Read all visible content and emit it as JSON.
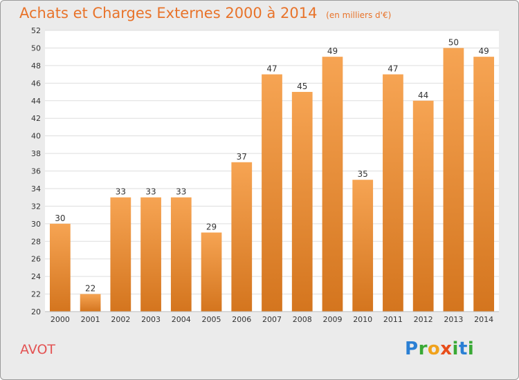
{
  "header": {
    "title": "Achats et Charges Externes 2000 à 2014",
    "subtitle": "(en milliers d'€)"
  },
  "location": {
    "name": "AVOT"
  },
  "logo": {
    "letters": [
      "P",
      "r",
      "o",
      "x",
      "i",
      "t",
      "i"
    ],
    "colors": [
      "#2a7fd4",
      "#39a935",
      "#f0a21c",
      "#e84e1b",
      "#39a935",
      "#2a7fd4",
      "#39a935"
    ]
  },
  "colors": {
    "bar_light": "#f6a453",
    "bar_dark": "#d4751e",
    "title": "#e8732a",
    "plot_bg": "#ffffff",
    "grid": "#dddddd",
    "axis_text": "#333333"
  },
  "chart_data": {
    "type": "bar",
    "title": "Achats et Charges Externes 2000 à 2014",
    "subtitle": "(en milliers d'€)",
    "xlabel": "",
    "ylabel": "",
    "categories": [
      "2000",
      "2001",
      "2002",
      "2003",
      "2004",
      "2005",
      "2006",
      "2007",
      "2008",
      "2009",
      "2010",
      "2011",
      "2012",
      "2013",
      "2014"
    ],
    "values": [
      30,
      22,
      33,
      33,
      33,
      29,
      37,
      47,
      45,
      49,
      35,
      47,
      44,
      50,
      49
    ],
    "ylim": [
      20,
      52
    ],
    "ytick_step": 2,
    "grid": true,
    "data_labels": true
  }
}
